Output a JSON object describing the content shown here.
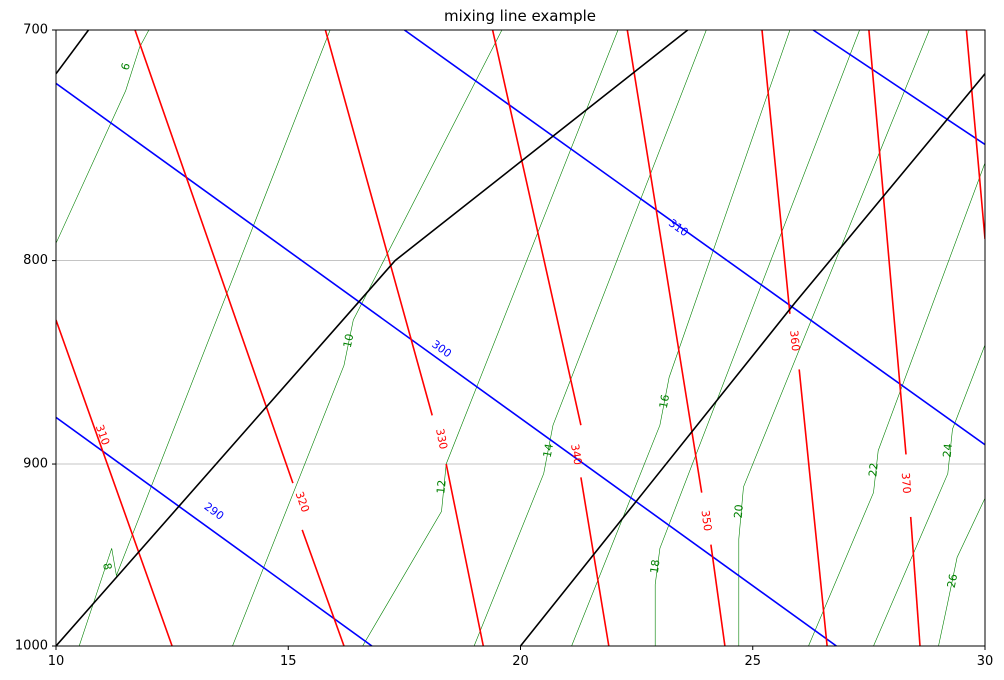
{
  "chart_data": {
    "type": "line",
    "title": "mixing line example",
    "xlabel": "",
    "ylabel": "",
    "xlim": [
      10,
      30
    ],
    "ylim": [
      1000,
      700
    ],
    "y_scale": "log",
    "grid": "horizontal",
    "x_ticks": [
      "10",
      "15",
      "20",
      "25",
      "30"
    ],
    "y_ticks": [
      "700",
      "800",
      "900",
      "1000"
    ],
    "colors": {
      "isotherm": "#000000",
      "dry_adiabat": "#0000ff",
      "moist_adiabat": "#ff0000",
      "mixing_ratio": "#008000",
      "grid": "#b0b0b0"
    },
    "isotherms": [
      {
        "points": [
          {
            "x": 10,
            "p": 1000
          },
          {
            "x": 17.3,
            "p": 800
          },
          {
            "x": 23.6,
            "p": 700
          }
        ]
      },
      {
        "points": [
          {
            "x": 10,
            "p": 718
          },
          {
            "x": 10.7,
            "p": 700
          }
        ]
      },
      {
        "points": [
          {
            "x": 20,
            "p": 1000
          },
          {
            "x": 25.9,
            "p": 820
          },
          {
            "x": 30,
            "p": 718
          }
        ]
      }
    ],
    "dry_adiabats": [
      {
        "label": "290",
        "label_point": {
          "x": 13.4,
          "p": 925
        },
        "points": [
          {
            "x": 10,
            "p": 876
          },
          {
            "x": 16.8,
            "p": 1000
          }
        ]
      },
      {
        "label": "300",
        "label_point": {
          "x": 18.3,
          "p": 842
        },
        "points": [
          {
            "x": 10,
            "p": 722
          },
          {
            "x": 26.8,
            "p": 1000
          }
        ]
      },
      {
        "label": "310",
        "label_point": {
          "x": 23.4,
          "p": 785
        },
        "points": [
          {
            "x": 17.5,
            "p": 700
          },
          {
            "x": 30,
            "p": 890
          }
        ]
      },
      {
        "points": [
          {
            "x": 26.3,
            "p": 700
          },
          {
            "x": 30,
            "p": 748
          }
        ]
      }
    ],
    "moist_adiabats": [
      {
        "label": "310",
        "label_point": {
          "x": 11.0,
          "p": 885
        },
        "points": [
          {
            "x": 10,
            "p": 828
          },
          {
            "x": 12.5,
            "p": 1000
          }
        ]
      },
      {
        "points": [
          {
            "x": 11.7,
            "p": 700
          },
          {
            "x": 15.1,
            "p": 910
          }
        ]
      },
      {
        "label": "320",
        "label_point": {
          "x": 15.3,
          "p": 920
        },
        "points": [
          {
            "x": 15.3,
            "p": 935
          },
          {
            "x": 16.2,
            "p": 1000
          }
        ]
      },
      {
        "points": [
          {
            "x": 15.8,
            "p": 700
          },
          {
            "x": 18.1,
            "p": 875
          }
        ]
      },
      {
        "label": "330",
        "label_point": {
          "x": 18.3,
          "p": 887
        },
        "points": [
          {
            "x": 18.4,
            "p": 900
          },
          {
            "x": 19.2,
            "p": 1000
          }
        ]
      },
      {
        "points": [
          {
            "x": 19.4,
            "p": 700
          },
          {
            "x": 21.3,
            "p": 880
          }
        ]
      },
      {
        "label": "340",
        "label_point": {
          "x": 21.2,
          "p": 895
        },
        "points": [
          {
            "x": 21.3,
            "p": 907
          },
          {
            "x": 21.9,
            "p": 1000
          }
        ]
      },
      {
        "points": [
          {
            "x": 22.3,
            "p": 700
          },
          {
            "x": 23.9,
            "p": 915
          }
        ]
      },
      {
        "label": "350",
        "label_point": {
          "x": 24.0,
          "p": 930
        },
        "points": [
          {
            "x": 24.1,
            "p": 943
          },
          {
            "x": 24.4,
            "p": 1000
          }
        ]
      },
      {
        "points": [
          {
            "x": 25.2,
            "p": 700
          },
          {
            "x": 25.8,
            "p": 825
          }
        ]
      },
      {
        "label": "360",
        "label_point": {
          "x": 25.9,
          "p": 838
        },
        "points": [
          {
            "x": 26.0,
            "p": 852
          },
          {
            "x": 26.6,
            "p": 1000
          }
        ]
      },
      {
        "points": [
          {
            "x": 27.5,
            "p": 700
          },
          {
            "x": 28.3,
            "p": 895
          }
        ]
      },
      {
        "label": "370",
        "label_point": {
          "x": 28.3,
          "p": 910
        },
        "points": [
          {
            "x": 28.4,
            "p": 928
          },
          {
            "x": 28.6,
            "p": 1000
          }
        ]
      },
      {
        "points": [
          {
            "x": 29.6,
            "p": 700
          },
          {
            "x": 30,
            "p": 790
          }
        ]
      }
    ],
    "mixing_lines": [
      {
        "label": "6",
        "label_point": {
          "x": 11.5,
          "p": 715
        },
        "points": [
          {
            "x": 10,
            "p": 792
          },
          {
            "x": 11.5,
            "p": 725
          },
          {
            "x": 11.8,
            "p": 707
          },
          {
            "x": 12.0,
            "p": 700
          }
        ]
      },
      {
        "label": "8",
        "label_point": {
          "x": 11.1,
          "p": 955
        },
        "points": [
          {
            "x": 10.5,
            "p": 1000
          },
          {
            "x": 11.2,
            "p": 945
          },
          {
            "x": 11.3,
            "p": 960
          },
          {
            "x": 15.9,
            "p": 700
          }
        ]
      },
      {
        "label": "10",
        "label_point": {
          "x": 16.3,
          "p": 838
        },
        "points": [
          {
            "x": 13.8,
            "p": 1000
          },
          {
            "x": 16.2,
            "p": 850
          },
          {
            "x": 16.4,
            "p": 828
          },
          {
            "x": 19.6,
            "p": 700
          }
        ]
      },
      {
        "label": "12",
        "label_point": {
          "x": 18.3,
          "p": 912
        },
        "points": [
          {
            "x": 16.6,
            "p": 1000
          },
          {
            "x": 18.3,
            "p": 925
          },
          {
            "x": 18.4,
            "p": 900
          },
          {
            "x": 22.1,
            "p": 700
          }
        ]
      },
      {
        "label": "14",
        "label_point": {
          "x": 20.6,
          "p": 893
        },
        "points": [
          {
            "x": 19.0,
            "p": 1000
          },
          {
            "x": 20.5,
            "p": 905
          },
          {
            "x": 20.7,
            "p": 880
          },
          {
            "x": 24.0,
            "p": 700
          }
        ]
      },
      {
        "label": "16",
        "label_point": {
          "x": 23.1,
          "p": 868
        },
        "points": [
          {
            "x": 21.1,
            "p": 1000
          },
          {
            "x": 23.0,
            "p": 880
          },
          {
            "x": 23.2,
            "p": 856
          },
          {
            "x": 25.8,
            "p": 700
          }
        ]
      },
      {
        "label": "18",
        "label_point": {
          "x": 22.9,
          "p": 955
        },
        "points": [
          {
            "x": 22.9,
            "p": 1000
          },
          {
            "x": 22.9,
            "p": 965
          },
          {
            "x": 23.0,
            "p": 945
          },
          {
            "x": 27.3,
            "p": 700
          }
        ]
      },
      {
        "label": "20",
        "label_point": {
          "x": 24.7,
          "p": 925
        },
        "points": [
          {
            "x": 24.7,
            "p": 1000
          },
          {
            "x": 24.7,
            "p": 940
          },
          {
            "x": 24.8,
            "p": 912
          },
          {
            "x": 28.8,
            "p": 700
          }
        ]
      },
      {
        "label": "22",
        "label_point": {
          "x": 27.6,
          "p": 903
        },
        "points": [
          {
            "x": 26.2,
            "p": 1000
          },
          {
            "x": 27.6,
            "p": 915
          },
          {
            "x": 27.7,
            "p": 893
          },
          {
            "x": 30,
            "p": 756
          }
        ]
      },
      {
        "label": "24",
        "label_point": {
          "x": 29.2,
          "p": 893
        },
        "points": [
          {
            "x": 27.6,
            "p": 1000
          },
          {
            "x": 29.2,
            "p": 905
          },
          {
            "x": 29.3,
            "p": 882
          },
          {
            "x": 30,
            "p": 840
          }
        ]
      },
      {
        "label": "26",
        "label_point": {
          "x": 29.3,
          "p": 963
        },
        "points": [
          {
            "x": 29.0,
            "p": 1000
          },
          {
            "x": 29.2,
            "p": 975
          },
          {
            "x": 29.4,
            "p": 950
          },
          {
            "x": 30,
            "p": 918
          }
        ]
      }
    ]
  }
}
